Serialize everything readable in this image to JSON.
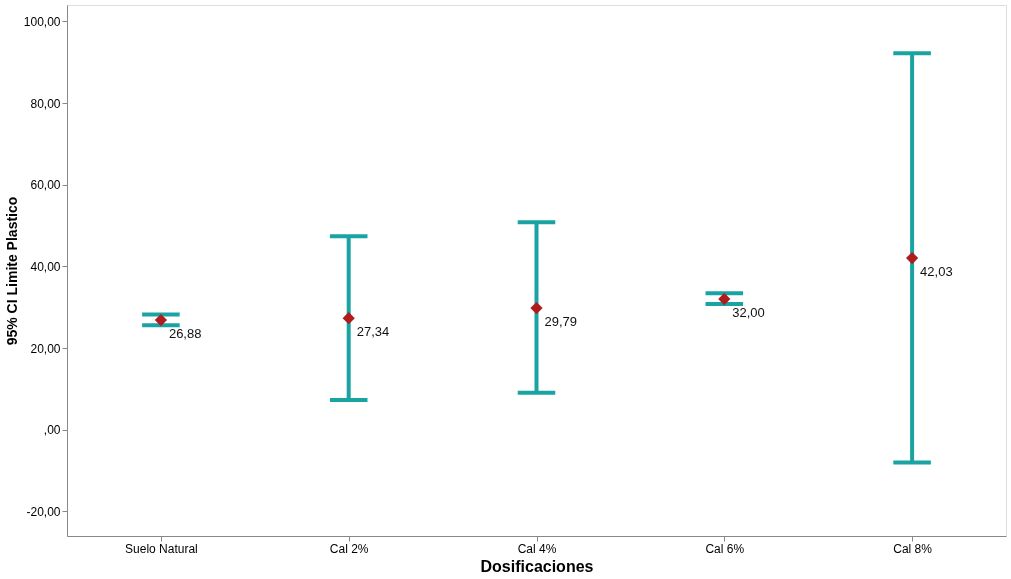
{
  "chart_data": {
    "type": "scatter",
    "xlabel": "Dosificaciones",
    "ylabel": "95% CI Limite Plastico",
    "categories": [
      "Suelo Natural",
      "Cal 2%",
      "Cal 4%",
      "Cal 6%",
      "Cal 8%"
    ],
    "series": [
      {
        "color": "#b01c1c",
        "values": [
          26.88,
          27.34,
          29.79,
          32.0,
          42.03
        ],
        "errors": [
          [
            25.6,
            28.2
          ],
          [
            7.3,
            47.4
          ],
          [
            9.1,
            50.8
          ],
          [
            30.8,
            33.4
          ],
          [
            -8.0,
            92.2
          ]
        ],
        "value_labels": [
          "26,88",
          "27,34",
          "29,79",
          "32,00",
          "42,03"
        ]
      }
    ],
    "ylim": [
      -26,
      104
    ],
    "yticks": [
      {
        "value": -20,
        "label": "-20,00"
      },
      {
        "value": 0,
        "label": ",00"
      },
      {
        "value": 20,
        "label": "20,00"
      },
      {
        "value": 40,
        "label": "40,00"
      },
      {
        "value": 60,
        "label": "60,00"
      },
      {
        "value": 80,
        "label": "80,00"
      },
      {
        "value": 100,
        "label": "100,00"
      }
    ],
    "marker": "diamond",
    "grid": false
  }
}
